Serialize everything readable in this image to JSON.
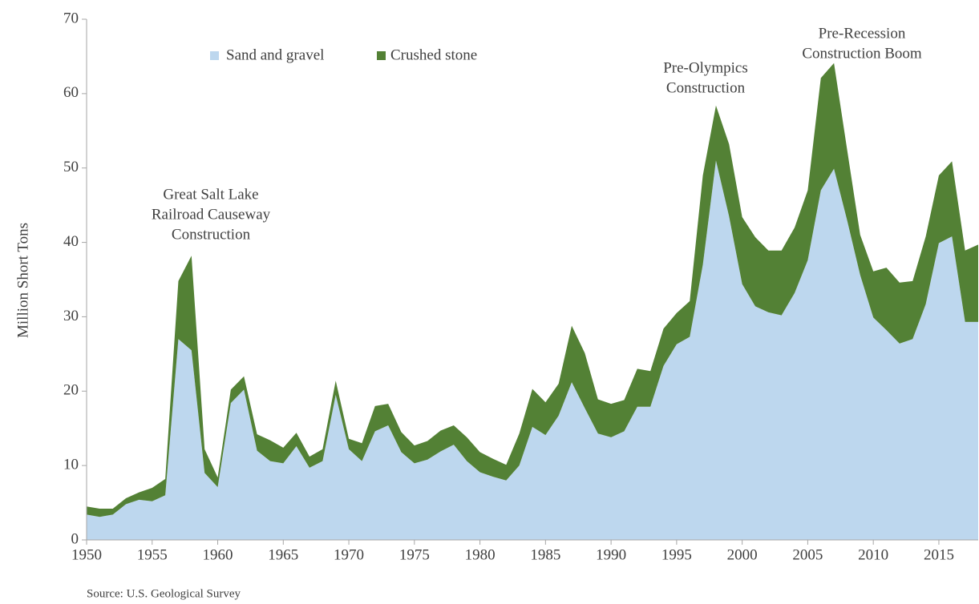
{
  "chart_data": {
    "type": "stacked-area",
    "y_label": "Million Short Tons",
    "source": "Source: U.S. Geological Survey",
    "legend": "top-left",
    "annotations": [
      {
        "lines": [
          "Great Salt Lake",
          "Railroad Causeway",
          "Construction"
        ]
      },
      {
        "lines": [
          "Pre-Olympics",
          "Construction"
        ]
      },
      {
        "lines": [
          "Pre-Recession",
          "Construction Boom"
        ]
      }
    ],
    "x": [
      1950,
      1951,
      1952,
      1953,
      1954,
      1955,
      1956,
      1957,
      1958,
      1959,
      1960,
      1961,
      1962,
      1963,
      1964,
      1965,
      1966,
      1967,
      1968,
      1969,
      1970,
      1971,
      1972,
      1973,
      1974,
      1975,
      1976,
      1977,
      1978,
      1979,
      1980,
      1981,
      1982,
      1983,
      1984,
      1985,
      1986,
      1987,
      1988,
      1989,
      1990,
      1991,
      1992,
      1993,
      1994,
      1995,
      1996,
      1997,
      1998,
      1999,
      2000,
      2001,
      2002,
      2003,
      2004,
      2005,
      2006,
      2007,
      2008,
      2009,
      2010,
      2011,
      2012,
      2013,
      2014,
      2015,
      2016,
      2017,
      2018
    ],
    "series": [
      {
        "name": "Sand and gravel",
        "color": "#bdd7ee",
        "values": [
          3.4,
          3.1,
          3.4,
          4.8,
          5.4,
          5.2,
          6.0,
          27.0,
          25.5,
          9.0,
          7.1,
          18.4,
          20.2,
          12.0,
          10.6,
          10.3,
          12.6,
          9.7,
          10.6,
          19.5,
          12.2,
          10.6,
          14.6,
          15.4,
          11.8,
          10.3,
          10.8,
          11.9,
          12.8,
          10.6,
          9.1,
          8.5,
          8.0,
          10.0,
          15.2,
          14.1,
          16.7,
          21.2,
          17.7,
          14.3,
          13.8,
          14.6,
          17.9,
          17.9,
          23.4,
          26.3,
          27.3,
          37.0,
          51.0,
          43.5,
          34.4,
          31.4,
          30.6,
          30.2,
          33.2,
          37.6,
          47.0,
          49.9,
          43.0,
          35.6,
          29.9,
          28.2,
          26.4,
          27.0,
          31.7,
          39.9,
          40.8,
          29.3,
          29.3
        ]
      },
      {
        "name": "Crushed stone",
        "color": "#538135",
        "values": [
          1.1,
          1.1,
          0.8,
          0.8,
          1.0,
          1.8,
          2.2,
          7.8,
          12.7,
          3.2,
          1.3,
          1.8,
          1.8,
          2.2,
          2.8,
          2.1,
          1.8,
          1.5,
          1.6,
          1.9,
          1.4,
          2.4,
          3.4,
          2.9,
          2.7,
          2.4,
          2.5,
          2.8,
          2.6,
          3.2,
          2.7,
          2.4,
          2.1,
          4.3,
          5.1,
          4.4,
          4.3,
          7.6,
          7.4,
          4.6,
          4.5,
          4.2,
          5.1,
          4.8,
          5.0,
          4.2,
          4.8,
          12.0,
          7.4,
          9.7,
          9.0,
          9.3,
          8.3,
          8.7,
          8.8,
          9.4,
          15.1,
          14.2,
          9.5,
          5.4,
          6.2,
          8.4,
          8.2,
          7.8,
          9.1,
          9.1,
          10.1,
          9.6,
          10.4
        ]
      }
    ],
    "xlim": [
      1950,
      2018
    ],
    "xticks": [
      1950,
      1955,
      1960,
      1965,
      1970,
      1975,
      1980,
      1985,
      1990,
      1995,
      2000,
      2005,
      2010,
      2015
    ],
    "ylim": [
      0,
      70
    ],
    "yticks": [
      0,
      10,
      20,
      30,
      40,
      50,
      60,
      70
    ],
    "grid": false
  }
}
